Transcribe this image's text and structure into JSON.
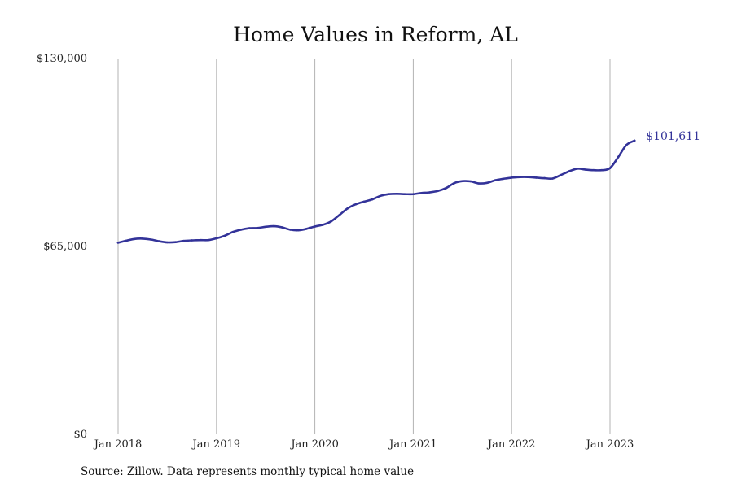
{
  "chart_data": {
    "type": "line",
    "title": "Home Values in Reform, AL",
    "xlabel": "",
    "ylabel": "",
    "ylim": [
      0,
      130000
    ],
    "y_ticks": [
      0,
      65000,
      130000
    ],
    "y_tick_labels": [
      "$0",
      "$65,000",
      "$130,000"
    ],
    "x_tick_labels": [
      "Jan 2018",
      "Jan 2019",
      "Jan 2020",
      "Jan 2021",
      "Jan 2022",
      "Jan 2023"
    ],
    "x_tick_dates": [
      "2018-01",
      "2019-01",
      "2020-01",
      "2021-01",
      "2022-01",
      "2023-01"
    ],
    "grid": "vertical",
    "line_color": "#333399",
    "end_label": "$101,611",
    "series": [
      {
        "x": [
          "2018-01",
          "2018-02",
          "2018-03",
          "2018-04",
          "2018-05",
          "2018-06",
          "2018-07",
          "2018-08",
          "2018-09",
          "2018-10",
          "2018-11",
          "2018-12",
          "2019-01",
          "2019-02",
          "2019-03",
          "2019-04",
          "2019-05",
          "2019-06",
          "2019-07",
          "2019-08",
          "2019-09",
          "2019-10",
          "2019-11",
          "2019-12",
          "2020-01",
          "2020-02",
          "2020-03",
          "2020-04",
          "2020-05",
          "2020-06",
          "2020-07",
          "2020-08",
          "2020-09",
          "2020-10",
          "2020-11",
          "2020-12",
          "2021-01",
          "2021-02",
          "2021-03",
          "2021-04",
          "2021-05",
          "2021-06",
          "2021-07",
          "2021-08",
          "2021-09",
          "2021-10",
          "2021-11",
          "2021-12",
          "2022-01",
          "2022-02",
          "2022-03",
          "2022-04",
          "2022-05",
          "2022-06",
          "2022-07",
          "2022-08",
          "2022-09",
          "2022-10",
          "2022-11",
          "2022-12",
          "2023-01",
          "2023-02",
          "2023-03",
          "2023-04"
        ],
        "values": [
          66300,
          67000,
          67600,
          67700,
          67400,
          66800,
          66400,
          66500,
          66900,
          67100,
          67200,
          67200,
          67800,
          68700,
          70000,
          70800,
          71300,
          71400,
          71800,
          72000,
          71600,
          70800,
          70600,
          71100,
          71900,
          72500,
          73700,
          75900,
          78200,
          79600,
          80500,
          81300,
          82500,
          83100,
          83200,
          83100,
          83100,
          83500,
          83700,
          84200,
          85200,
          86900,
          87600,
          87500,
          86800,
          87000,
          87900,
          88400,
          88800,
          89000,
          89000,
          88800,
          88600,
          88500,
          89700,
          91000,
          91900,
          91600,
          91400,
          91400,
          92100,
          95900,
          100100,
          101611
        ]
      }
    ]
  },
  "source_text": "Source: Zillow. Data represents monthly typical home value"
}
